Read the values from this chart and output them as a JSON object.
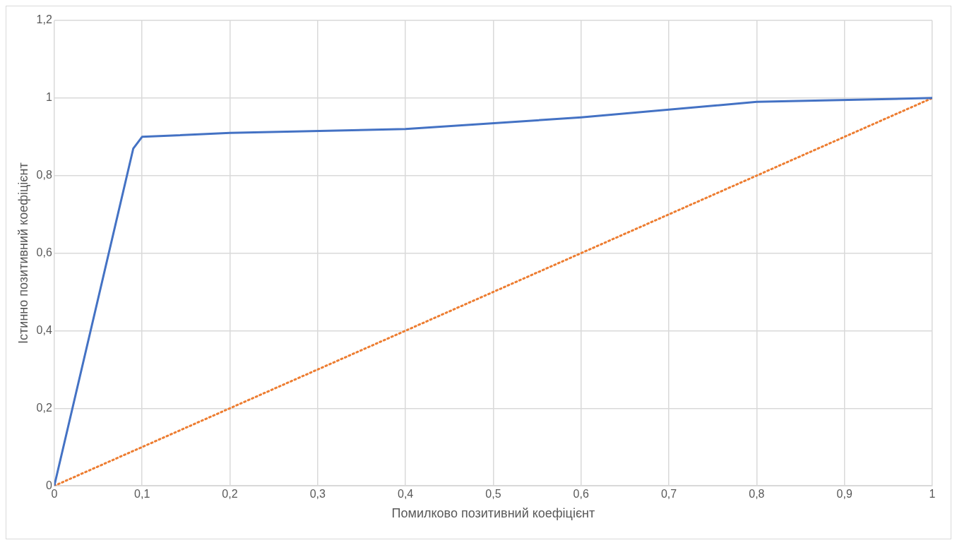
{
  "chart_data": {
    "type": "line",
    "xlabel": "Помилково позитивний коефіцієнт",
    "ylabel": "Істинно позитивний коефіцієнт",
    "series": [
      {
        "color": "#4472c4",
        "x": [
          0,
          0.09,
          0.1,
          0.2,
          0.4,
          0.6,
          0.8,
          1
        ],
        "values": [
          0,
          0.87,
          0.9,
          0.91,
          0.92,
          0.95,
          0.99,
          1
        ],
        "line_style": "solid"
      },
      {
        "color": "#ed7d31",
        "x": [
          0,
          1
        ],
        "values": [
          0,
          1
        ],
        "line_style": "dotted"
      }
    ],
    "xlim": [
      0,
      1
    ],
    "ylim": [
      0,
      1.2
    ],
    "xticks": [
      0,
      {
        "value": 0.1,
        "label": "0,1"
      },
      {
        "value": 0.2,
        "label": "0,2"
      },
      {
        "value": 0.3,
        "label": "0,3"
      },
      {
        "value": 0.4,
        "label": "0,4"
      },
      {
        "value": 0.5,
        "label": "0,5"
      },
      {
        "value": 0.6,
        "label": "0,6"
      },
      {
        "value": 0.7,
        "label": "0,7"
      },
      {
        "value": 0.8,
        "label": "0,8"
      },
      {
        "value": 0.9,
        "label": "0,9"
      },
      1
    ],
    "yticks": [
      0,
      {
        "value": 0.2,
        "label": "0,2"
      },
      {
        "value": 0.4,
        "label": "0,4"
      },
      {
        "value": 0.6,
        "label": "0,6"
      },
      {
        "value": 0.8,
        "label": "0,8"
      },
      1,
      {
        "value": 1.2,
        "label": "1,2"
      }
    ],
    "grid": true,
    "legend": false,
    "marker": "none"
  }
}
